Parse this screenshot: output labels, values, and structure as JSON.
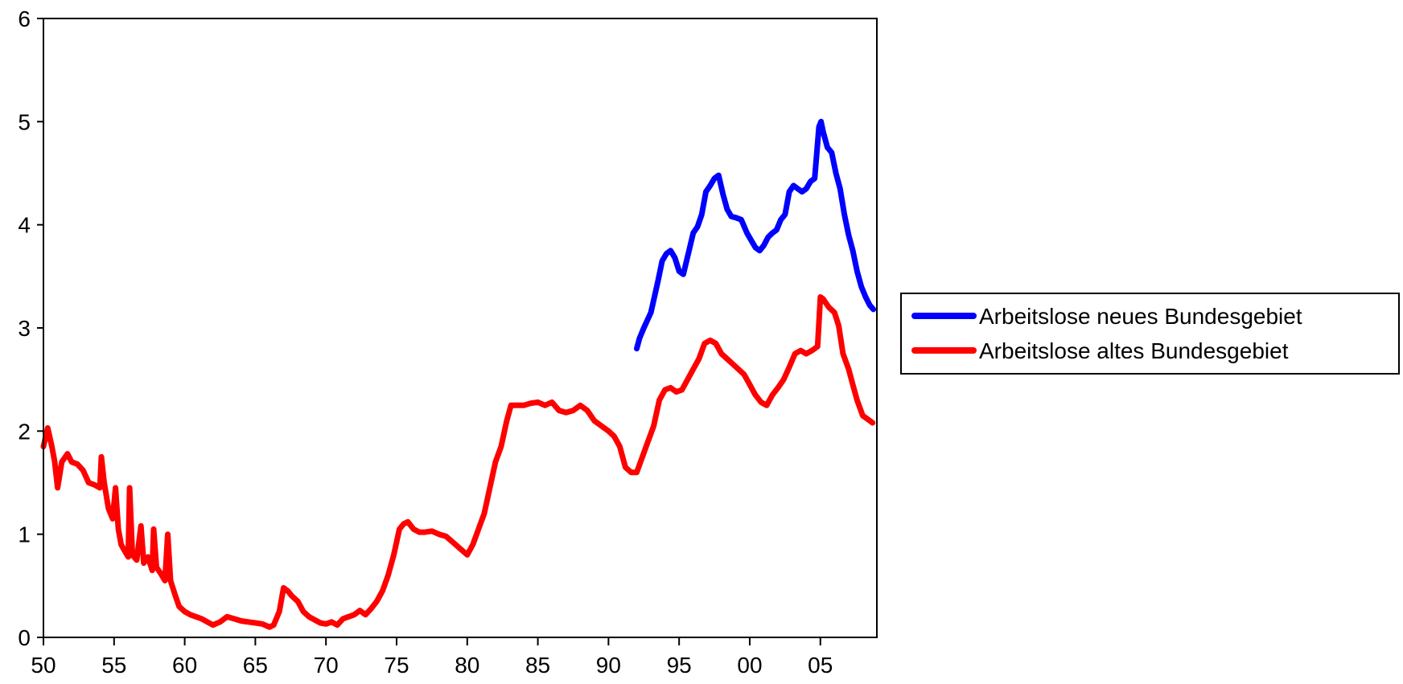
{
  "chart_data": {
    "type": "line",
    "title": "",
    "xlabel": "",
    "ylabel": "",
    "xlim": [
      1950,
      2009
    ],
    "ylim": [
      0,
      6
    ],
    "y_ticks": [
      0,
      1,
      2,
      3,
      4,
      5,
      6
    ],
    "x_ticks": [
      {
        "value": 1950,
        "label": "50"
      },
      {
        "value": 1955,
        "label": "55"
      },
      {
        "value": 1960,
        "label": "60"
      },
      {
        "value": 1965,
        "label": "65"
      },
      {
        "value": 1970,
        "label": "70"
      },
      {
        "value": 1975,
        "label": "75"
      },
      {
        "value": 1980,
        "label": "80"
      },
      {
        "value": 1985,
        "label": "85"
      },
      {
        "value": 1990,
        "label": "90"
      },
      {
        "value": 1995,
        "label": "95"
      },
      {
        "value": 2000,
        "label": "00"
      },
      {
        "value": 2005,
        "label": "05"
      }
    ],
    "grid": false,
    "legend_position": "right",
    "series": [
      {
        "name": "Arbeitslose neues Bundesgebiet",
        "color": "#0000ff",
        "x": [
          1992.0,
          1992.2,
          1992.5,
          1993.0,
          1993.5,
          1993.8,
          1994.1,
          1994.4,
          1994.7,
          1995.0,
          1995.3,
          1995.7,
          1996.0,
          1996.3,
          1996.6,
          1996.9,
          1997.2,
          1997.5,
          1997.8,
          1998.1,
          1998.4,
          1998.7,
          1999.0,
          1999.4,
          1999.8,
          2000.1,
          2000.4,
          2000.7,
          2001.0,
          2001.3,
          2001.6,
          2001.9,
          2002.2,
          2002.5,
          2002.8,
          2003.1,
          2003.4,
          2003.7,
          2004.0,
          2004.3,
          2004.6,
          2004.9,
          2005.05,
          2005.2,
          2005.5,
          2005.8,
          2006.1,
          2006.4,
          2006.7,
          2007.0,
          2007.3,
          2007.6,
          2007.9,
          2008.2,
          2008.5,
          2008.75
        ],
        "values": [
          2.8,
          2.9,
          3.0,
          3.15,
          3.45,
          3.65,
          3.72,
          3.75,
          3.68,
          3.55,
          3.52,
          3.75,
          3.92,
          3.98,
          4.1,
          4.32,
          4.38,
          4.45,
          4.48,
          4.3,
          4.15,
          4.08,
          4.07,
          4.05,
          3.92,
          3.85,
          3.78,
          3.75,
          3.8,
          3.88,
          3.92,
          3.95,
          4.05,
          4.1,
          4.32,
          4.38,
          4.35,
          4.32,
          4.35,
          4.42,
          4.45,
          4.95,
          5.0,
          4.9,
          4.75,
          4.7,
          4.5,
          4.35,
          4.1,
          3.9,
          3.75,
          3.55,
          3.4,
          3.3,
          3.22,
          3.18
        ]
      },
      {
        "name": "Arbeitslose altes Bundesgebiet",
        "color": "#ff0000",
        "x": [
          1950.0,
          1950.3,
          1950.6,
          1950.8,
          1951.0,
          1951.3,
          1951.7,
          1952.0,
          1952.4,
          1952.8,
          1953.2,
          1953.6,
          1954.0,
          1954.1,
          1954.3,
          1954.6,
          1954.9,
          1955.1,
          1955.3,
          1955.5,
          1955.7,
          1956.0,
          1956.1,
          1956.3,
          1956.6,
          1956.9,
          1957.1,
          1957.4,
          1957.7,
          1957.8,
          1958.0,
          1958.3,
          1958.6,
          1958.8,
          1959.0,
          1959.3,
          1959.6,
          1960.0,
          1960.4,
          1960.8,
          1961.2,
          1961.6,
          1962.0,
          1962.5,
          1963.0,
          1963.5,
          1964.0,
          1964.5,
          1965.0,
          1965.5,
          1966.0,
          1966.3,
          1966.7,
          1967.0,
          1967.3,
          1967.6,
          1968.0,
          1968.4,
          1968.8,
          1969.2,
          1969.6,
          1970.0,
          1970.4,
          1970.8,
          1971.2,
          1971.6,
          1972.0,
          1972.4,
          1972.8,
          1973.2,
          1973.6,
          1974.0,
          1974.4,
          1974.8,
          1975.2,
          1975.5,
          1975.8,
          1976.2,
          1976.6,
          1977.0,
          1977.5,
          1978.0,
          1978.5,
          1979.0,
          1979.5,
          1980.0,
          1980.4,
          1980.8,
          1981.2,
          1981.6,
          1982.0,
          1982.4,
          1982.8,
          1983.1,
          1983.5,
          1984.0,
          1984.5,
          1985.0,
          1985.5,
          1986.0,
          1986.5,
          1987.0,
          1987.5,
          1988.0,
          1988.5,
          1989.0,
          1989.5,
          1990.0,
          1990.4,
          1990.8,
          1991.2,
          1991.6,
          1992.0,
          1992.4,
          1992.8,
          1993.2,
          1993.6,
          1994.0,
          1994.4,
          1994.8,
          1995.2,
          1995.6,
          1996.0,
          1996.4,
          1996.8,
          1997.2,
          1997.6,
          1998.0,
          1998.4,
          1998.8,
          1999.2,
          1999.6,
          2000.0,
          2000.4,
          2000.8,
          2001.2,
          2001.6,
          2002.0,
          2002.4,
          2002.8,
          2003.2,
          2003.6,
          2004.0,
          2004.4,
          2004.8,
          2005.0,
          2005.2,
          2005.6,
          2006.0,
          2006.3,
          2006.6,
          2007.0,
          2007.3,
          2007.6,
          2008.0,
          2008.3,
          2008.7
        ],
        "values": [
          1.85,
          2.03,
          1.85,
          1.7,
          1.45,
          1.7,
          1.78,
          1.7,
          1.68,
          1.62,
          1.5,
          1.48,
          1.45,
          1.75,
          1.5,
          1.25,
          1.15,
          1.45,
          1.05,
          0.9,
          0.85,
          0.78,
          1.45,
          0.8,
          0.75,
          1.08,
          0.72,
          0.78,
          0.65,
          1.05,
          0.68,
          0.62,
          0.55,
          1.0,
          0.55,
          0.42,
          0.3,
          0.25,
          0.22,
          0.2,
          0.18,
          0.15,
          0.12,
          0.15,
          0.2,
          0.18,
          0.16,
          0.15,
          0.14,
          0.13,
          0.1,
          0.12,
          0.25,
          0.48,
          0.45,
          0.4,
          0.35,
          0.25,
          0.2,
          0.17,
          0.14,
          0.13,
          0.15,
          0.12,
          0.18,
          0.2,
          0.22,
          0.26,
          0.22,
          0.28,
          0.35,
          0.45,
          0.6,
          0.8,
          1.05,
          1.1,
          1.12,
          1.05,
          1.02,
          1.02,
          1.03,
          1.0,
          0.98,
          0.92,
          0.86,
          0.8,
          0.9,
          1.05,
          1.2,
          1.45,
          1.7,
          1.85,
          2.1,
          2.25,
          2.25,
          2.25,
          2.27,
          2.28,
          2.25,
          2.28,
          2.2,
          2.18,
          2.2,
          2.25,
          2.2,
          2.1,
          2.05,
          2.0,
          1.95,
          1.85,
          1.65,
          1.6,
          1.6,
          1.75,
          1.9,
          2.05,
          2.3,
          2.4,
          2.42,
          2.38,
          2.4,
          2.5,
          2.6,
          2.7,
          2.85,
          2.88,
          2.85,
          2.75,
          2.7,
          2.65,
          2.6,
          2.55,
          2.45,
          2.35,
          2.28,
          2.25,
          2.35,
          2.42,
          2.5,
          2.62,
          2.75,
          2.78,
          2.75,
          2.78,
          2.82,
          3.3,
          3.28,
          3.2,
          3.15,
          3.02,
          2.75,
          2.6,
          2.45,
          2.3,
          2.15,
          2.12,
          2.08
        ]
      }
    ]
  }
}
